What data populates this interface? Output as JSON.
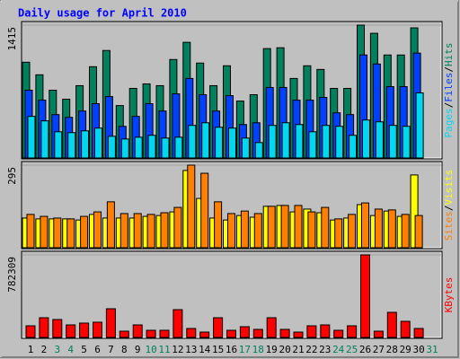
{
  "chart_data": [
    {
      "type": "bar",
      "title": "Daily usage for April 2010",
      "categories": [
        "1",
        "2",
        "3",
        "4",
        "5",
        "6",
        "7",
        "8",
        "9",
        "10",
        "11",
        "12",
        "13",
        "14",
        "15",
        "16",
        "17",
        "18",
        "19",
        "20",
        "21",
        "22",
        "23",
        "24",
        "25",
        "26",
        "27",
        "28",
        "29",
        "30",
        "31"
      ],
      "category_colors": [
        "#000000",
        "#000000",
        "#00805c",
        "#00805c",
        "#000000",
        "#000000",
        "#000000",
        "#000000",
        "#000000",
        "#00805c",
        "#00805c",
        "#000000",
        "#000000",
        "#000000",
        "#000000",
        "#000000",
        "#00805c",
        "#00805c",
        "#000000",
        "#000000",
        "#000000",
        "#000000",
        "#000000",
        "#00805c",
        "#00805c",
        "#000000",
        "#000000",
        "#000000",
        "#000000",
        "#000000",
        "#00805c"
      ],
      "legend_separator": "/",
      "ylim": [
        0,
        1415
      ],
      "yticks": [
        1415
      ],
      "series": [
        {
          "name": "Hits",
          "color": "#00805c",
          "values": [
            1020,
            886,
            722,
            626,
            770,
            972,
            1145,
            558,
            741,
            789,
            770,
            1049,
            1232,
            1011,
            770,
            982,
            606,
            674,
            1165,
            1174,
            847,
            982,
            943,
            741,
            741,
            1415,
            1328,
            1097,
            1097,
            1386,
            null
          ]
        },
        {
          "name": "Files",
          "color": "#0040ff",
          "values": [
            722,
            616,
            462,
            433,
            500,
            578,
            654,
            337,
            443,
            578,
            500,
            683,
            847,
            674,
            500,
            664,
            356,
            375,
            751,
            751,
            616,
            616,
            645,
            481,
            462,
            1097,
            1001,
            760,
            760,
            1117,
            null
          ]
        },
        {
          "name": "Pages",
          "color": "#00d8f0",
          "values": [
            443,
            395,
            279,
            270,
            289,
            318,
            231,
            202,
            221,
            241,
            212,
            221,
            347,
            375,
            327,
            318,
            212,
            164,
            347,
            375,
            356,
            279,
            347,
            337,
            241,
            404,
            385,
            347,
            337,
            693,
            null
          ]
        }
      ]
    },
    {
      "type": "bar",
      "legend_separator": "/",
      "ylim": [
        0,
        295
      ],
      "yticks": [
        295
      ],
      "series": [
        {
          "name": "Visits",
          "color": "#ffff00",
          "values": [
            106,
            103,
            103,
            103,
            99,
            119,
            106,
            106,
            106,
            112,
            115,
            128,
            276,
            176,
            106,
            99,
            115,
            109,
            148,
            151,
            128,
            138,
            125,
            99,
            106,
            154,
            115,
            131,
            112,
            260,
            null
          ]
        },
        {
          "name": "Sites",
          "color": "#ff8000",
          "values": [
            119,
            112,
            106,
            103,
            112,
            128,
            164,
            122,
            122,
            119,
            125,
            144,
            295,
            266,
            164,
            122,
            131,
            122,
            148,
            151,
            151,
            128,
            144,
            103,
            119,
            160,
            138,
            135,
            119,
            115,
            null
          ]
        }
      ]
    },
    {
      "type": "bar",
      "ylim": [
        0,
        782309
      ],
      "yticks": [
        782309
      ],
      "series": [
        {
          "name": "KBytes",
          "color": "#ff0000",
          "values": [
            110540,
            187070,
            170060,
            119040,
            136050,
            144550,
            272100,
            59520,
            119040,
            68020,
            68020,
            263590,
            85030,
            51020,
            187070,
            68020,
            102040,
            76530,
            187070,
            76530,
            51020,
            110540,
            119040,
            68020,
            110540,
            782309,
            59520,
            238090,
            153050,
            85030,
            null
          ]
        }
      ]
    }
  ]
}
